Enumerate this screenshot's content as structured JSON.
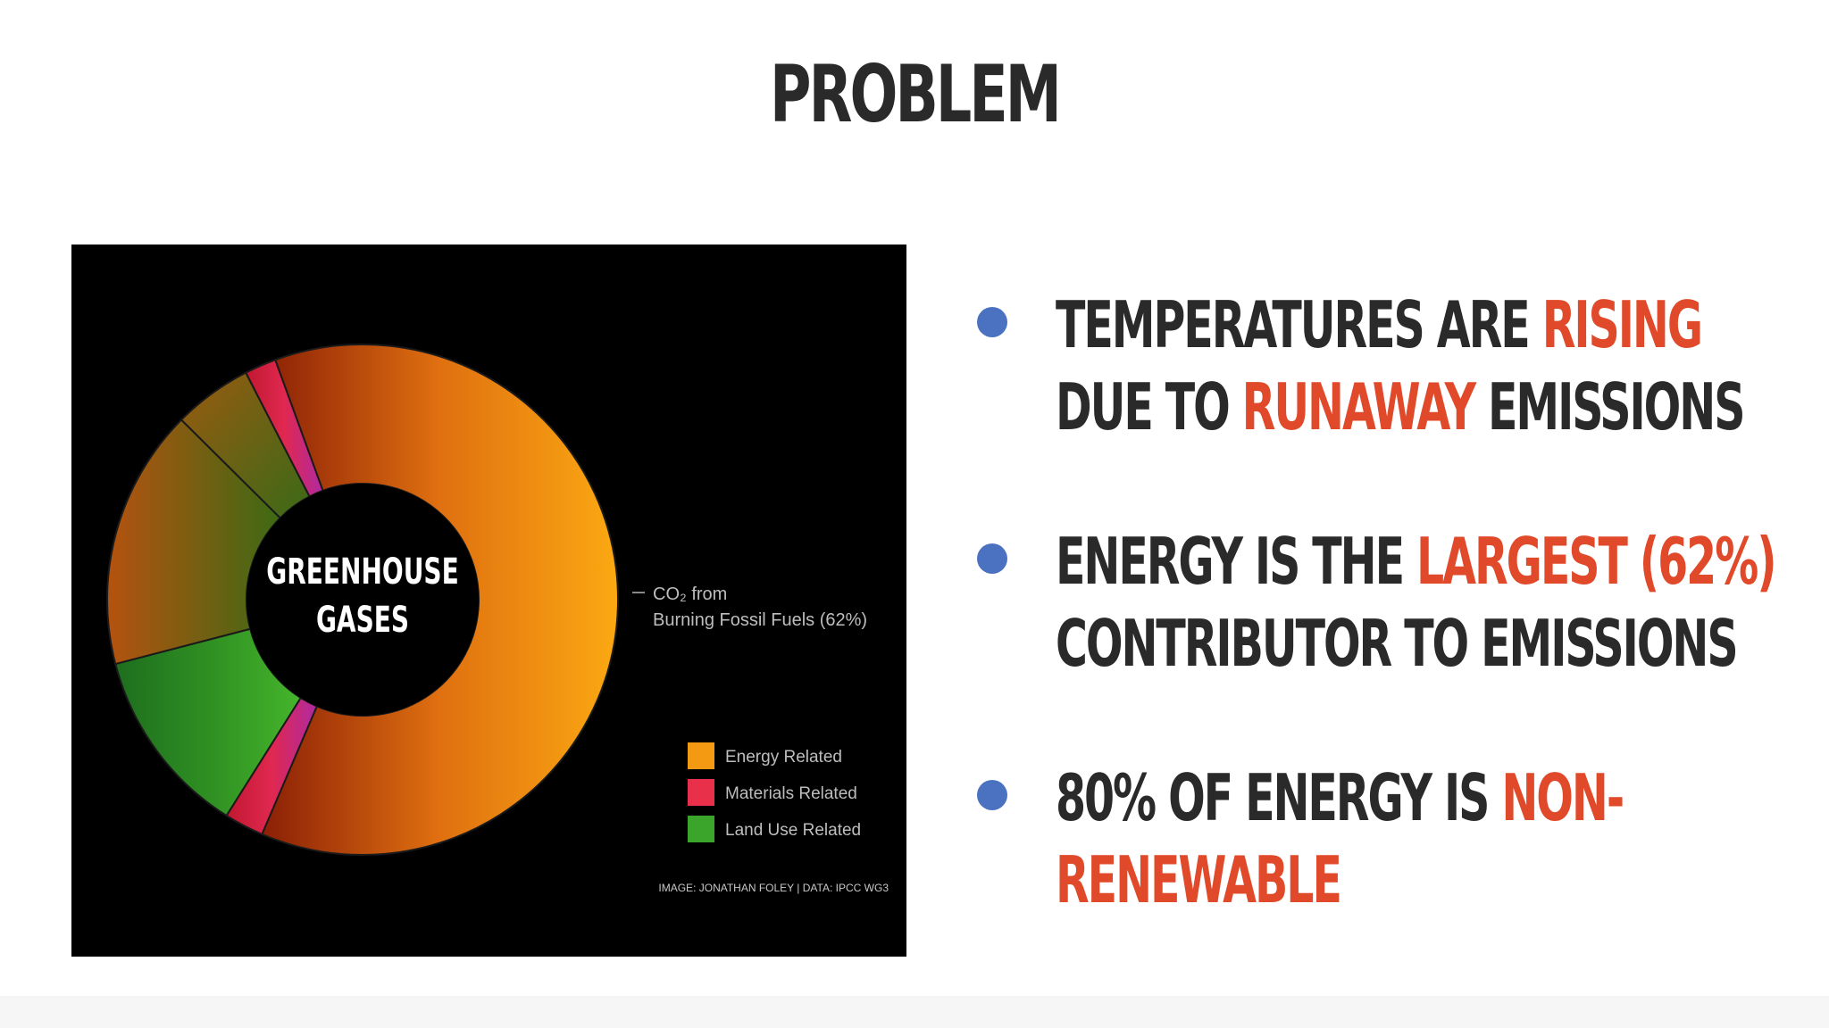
{
  "slide": {
    "title": "PROBLEM"
  },
  "bullets": [
    {
      "line1": [
        {
          "t": "TEMPERATURES ARE ",
          "hl": false
        },
        {
          "t": "RISING",
          "hl": true
        }
      ],
      "line2": [
        {
          "t": "DUE TO ",
          "hl": false
        },
        {
          "t": "RUNAWAY",
          "hl": true
        },
        {
          "t": " EMISSIONS",
          "hl": false
        }
      ]
    },
    {
      "line1": [
        {
          "t": "ENERGY IS THE ",
          "hl": false
        },
        {
          "t": "LARGEST (62%)",
          "hl": true
        }
      ],
      "line2": [
        {
          "t": "CONTRIBUTOR TO EMISSIONS",
          "hl": false
        }
      ]
    },
    {
      "line1": [
        {
          "t": "80% OF ENERGY IS ",
          "hl": false
        },
        {
          "t": "NON-",
          "hl": true
        }
      ],
      "line2": [
        {
          "t": "RENEWABLE",
          "hl": true
        }
      ]
    }
  ],
  "colors": {
    "highlight": "#e04a2a",
    "bullet_dot": "#4a72c0",
    "text": "#2a2a2a",
    "energy": "#f39a12",
    "materials": "#e8304a",
    "land_use": "#3aa52a"
  },
  "chart_data": {
    "type": "pie",
    "style": "donut",
    "center_label": [
      "GREENHOUSE",
      "GASES"
    ],
    "slices": [
      {
        "group": "Energy Related",
        "value": 62
      },
      {
        "group": "Materials Related",
        "value": 2.5
      },
      {
        "group": "Land Use Related",
        "value": 12
      },
      {
        "group": "Energy Related",
        "value": 16.5
      },
      {
        "group": "Energy Related",
        "value": 5
      },
      {
        "group": "Materials Related",
        "value": 2
      }
    ],
    "annotation": {
      "line1": "CO₂ from",
      "line2": "Burning Fossil Fuels (62%)"
    },
    "legend": [
      {
        "label": "Energy Related",
        "color": "#f39a12"
      },
      {
        "label": "Materials Related",
        "color": "#e8304a"
      },
      {
        "label": "Land Use Related",
        "color": "#3aa52a"
      }
    ],
    "legend_position": "bottom-right",
    "credit": "IMAGE: JONATHAN FOLEY | DATA: IPCC WG3"
  }
}
